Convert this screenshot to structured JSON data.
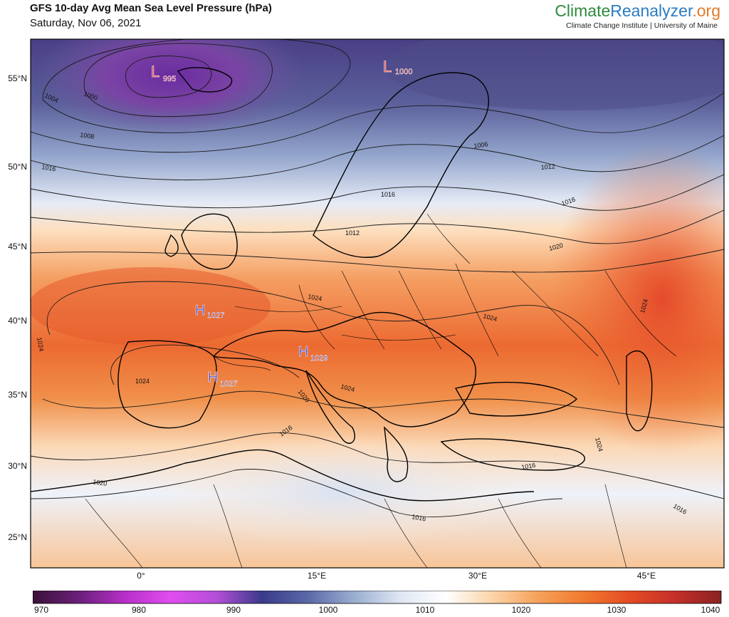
{
  "title": "GFS 10-day Avg Mean Sea Level Pressure (hPa)",
  "subtitle": "Saturday, Nov 06, 2021",
  "brand": {
    "part1": "Climate",
    "part2": "Reanalyzer",
    "part3": ".org",
    "subtitle": "Climate Change Institute | University of Maine"
  },
  "map": {
    "lat_labels": [
      "55°N",
      "50°N",
      "45°N",
      "40°N",
      "35°N",
      "30°N",
      "25°N"
    ],
    "lon_labels": [
      "0°",
      "15°E",
      "30°E",
      "45°E"
    ],
    "pressure_centers": [
      {
        "type": "L",
        "value": "995",
        "color": "#e8453c"
      },
      {
        "type": "L",
        "value": "1000",
        "color": "#e8453c"
      },
      {
        "type": "H",
        "value": "1027",
        "color": "#2b3bd9"
      },
      {
        "type": "H",
        "value": "1029",
        "color": "#2b3bd9"
      },
      {
        "type": "H",
        "value": "1027",
        "color": "#2b3bd9"
      }
    ],
    "contour_labels": [
      "1004",
      "1000",
      "1008",
      "1016",
      "1006",
      "1012",
      "1016",
      "1016",
      "1020",
      "1024",
      "1024",
      "1024",
      "1024",
      "1024",
      "1024",
      "1020",
      "1016",
      "1016",
      "1016",
      "1020",
      "1016",
      "1012",
      "1024"
    ]
  },
  "colorbar": {
    "ticks": [
      "970",
      "980",
      "990",
      "1000",
      "1010",
      "1020",
      "1030",
      "1040"
    ],
    "stops": [
      "#3b1238",
      "#6a1f7a",
      "#b62fc7",
      "#e04df0",
      "#b34fd6",
      "#3a3a8a",
      "#5a69a8",
      "#9aaed0",
      "#dfe6f3",
      "#ffffff",
      "#fbd5a8",
      "#f6a25c",
      "#f07a2e",
      "#e44b24",
      "#c4302a",
      "#8a2222"
    ]
  },
  "chart_data": {
    "type": "map",
    "variable": "GFS 10-day Avg Mean Sea Level Pressure (hPa)",
    "date": "Saturday, Nov 06, 2021",
    "colorbar_range": [
      970,
      1040
    ],
    "centers": [
      {
        "type": "L",
        "value": 995
      },
      {
        "type": "L",
        "value": 1000
      },
      {
        "type": "H",
        "value": 1027
      },
      {
        "type": "H",
        "value": 1029
      },
      {
        "type": "H",
        "value": 1027
      }
    ]
  }
}
